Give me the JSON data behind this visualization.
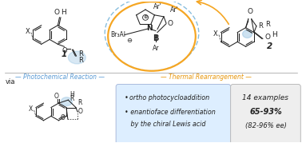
{
  "bg_color": "#ffffff",
  "blue_arrow_color": "#6baed6",
  "orange_arrow_color": "#f5a623",
  "photochem_label": "Photochemical Reaction",
  "photochem_color": "#5b9bd5",
  "thermal_label": "Thermal Rearrangement",
  "thermal_color": "#e8960a",
  "via_text": "via",
  "bullet1_normal": "• ",
  "bullet1_italic": "ortho photocycloaddition",
  "bullet2_normal": "• enantioface differentiation",
  "bullet3_normal": "   by the chiral Lewis acid",
  "stats_line1": "14 examples",
  "stats_line2": "65-93%",
  "stats_line3": "(82-96% ee)",
  "box_bg_blue": "#ddeeff",
  "box_bg_gray": "#eeeeee",
  "box_border_blue": "#aabbdd",
  "box_border_gray": "#bbbbbb",
  "highlight_blue": "#90bfe0",
  "line_color": "#999999",
  "sc": "#222222",
  "oval_orange": "#f5a623",
  "oval_blue": "#6baed6"
}
